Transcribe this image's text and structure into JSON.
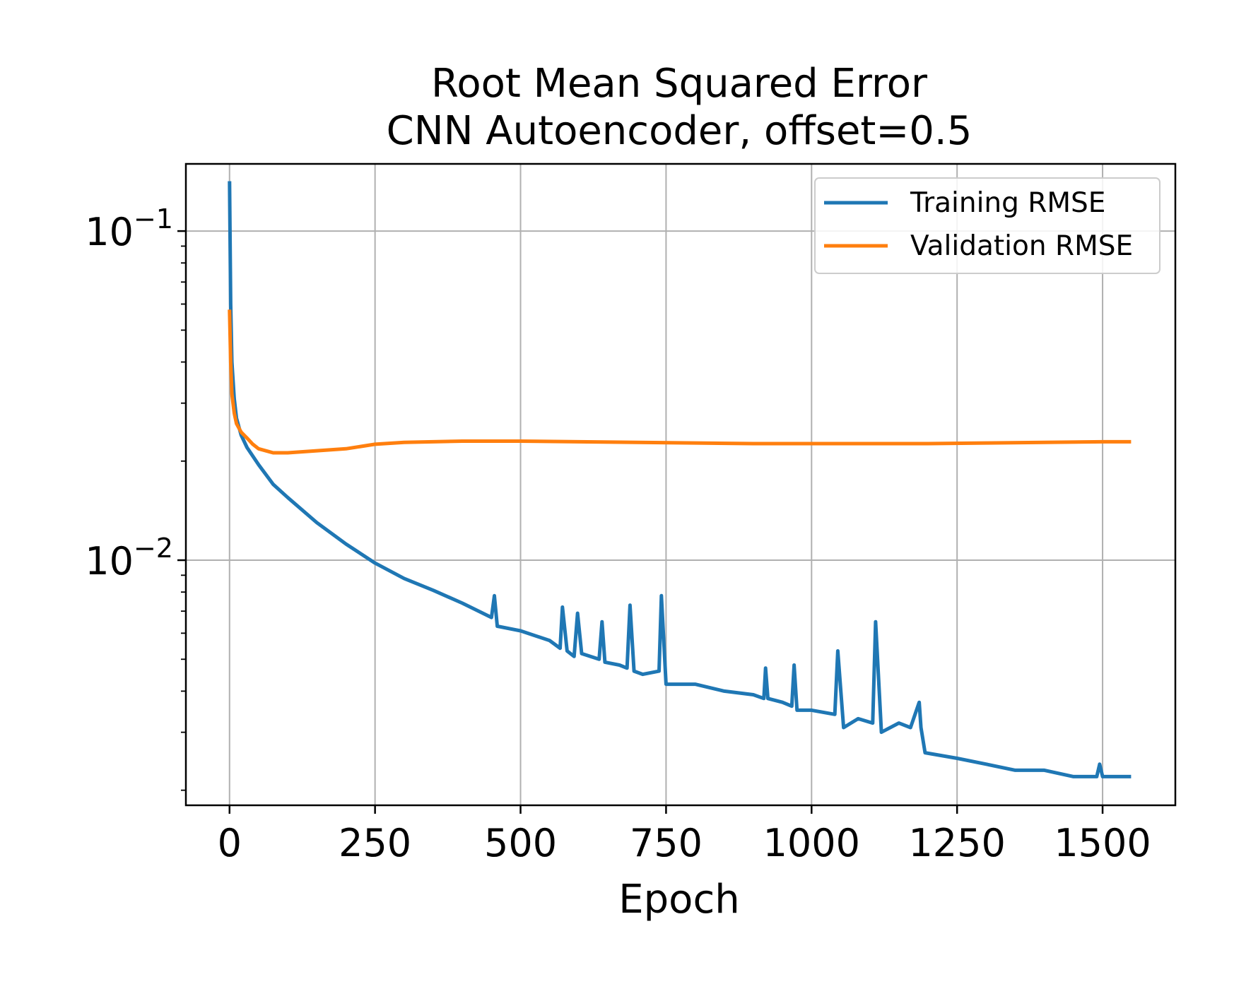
{
  "chart_data": {
    "type": "line",
    "title": "Root Mean Squared Error",
    "subtitle": "CNN Autoencoder, offset=0.5",
    "xlabel": "Epoch",
    "ylabel": "",
    "yscale": "log",
    "xlim": [
      -75,
      1625
    ],
    "ylim": [
      0.0018,
      0.16
    ],
    "x_ticks": [
      0,
      250,
      500,
      750,
      1000,
      1250,
      1500
    ],
    "y_ticks": [
      {
        "value": 0.1,
        "base": "10",
        "exp": "−1"
      },
      {
        "value": 0.01,
        "base": "10",
        "exp": "−2"
      }
    ],
    "grid": true,
    "legend_position": "top-right",
    "colors": {
      "training": "#1f77b4",
      "validation": "#ff7f0e",
      "grid": "#b0b0b0"
    },
    "series": [
      {
        "name": "Training RMSE",
        "x": [
          0,
          2,
          4,
          8,
          12,
          20,
          30,
          50,
          75,
          100,
          150,
          200,
          250,
          300,
          350,
          400,
          450,
          455,
          460,
          500,
          550,
          568,
          572,
          580,
          592,
          598,
          605,
          635,
          640,
          645,
          670,
          683,
          688,
          695,
          710,
          738,
          742,
          750,
          800,
          850,
          900,
          918,
          921,
          925,
          950,
          966,
          970,
          975,
          1000,
          1040,
          1045,
          1055,
          1080,
          1105,
          1110,
          1120,
          1150,
          1170,
          1185,
          1188,
          1195,
          1250,
          1300,
          1350,
          1400,
          1450,
          1490,
          1495,
          1500,
          1520,
          1546
        ],
        "values": [
          0.14,
          0.06,
          0.04,
          0.031,
          0.027,
          0.024,
          0.022,
          0.0195,
          0.017,
          0.0155,
          0.013,
          0.0112,
          0.0098,
          0.0088,
          0.0081,
          0.0074,
          0.0067,
          0.0078,
          0.0063,
          0.0061,
          0.0057,
          0.0054,
          0.0072,
          0.0053,
          0.0051,
          0.0069,
          0.0052,
          0.005,
          0.0065,
          0.0049,
          0.0048,
          0.0047,
          0.0073,
          0.0046,
          0.0045,
          0.0046,
          0.0078,
          0.0042,
          0.0042,
          0.004,
          0.0039,
          0.0038,
          0.0047,
          0.0038,
          0.0037,
          0.0036,
          0.0048,
          0.0035,
          0.0035,
          0.0034,
          0.0053,
          0.0031,
          0.0033,
          0.0032,
          0.0065,
          0.003,
          0.0032,
          0.0031,
          0.0037,
          0.0031,
          0.0026,
          0.0025,
          0.0024,
          0.0023,
          0.0023,
          0.0022,
          0.0022,
          0.0024,
          0.0022,
          0.0022,
          0.0022
        ]
      },
      {
        "name": "Validation RMSE",
        "x": [
          0,
          2,
          4,
          8,
          12,
          20,
          30,
          40,
          50,
          75,
          100,
          150,
          200,
          250,
          300,
          400,
          500,
          600,
          700,
          800,
          900,
          1000,
          1100,
          1200,
          1300,
          1400,
          1500,
          1546
        ],
        "values": [
          0.057,
          0.04,
          0.032,
          0.028,
          0.026,
          0.0245,
          0.0235,
          0.0225,
          0.0218,
          0.0212,
          0.0212,
          0.0215,
          0.0218,
          0.0225,
          0.0228,
          0.023,
          0.023,
          0.0229,
          0.0228,
          0.0227,
          0.0226,
          0.0226,
          0.0226,
          0.0226,
          0.0227,
          0.0228,
          0.0229,
          0.0229
        ]
      }
    ]
  }
}
